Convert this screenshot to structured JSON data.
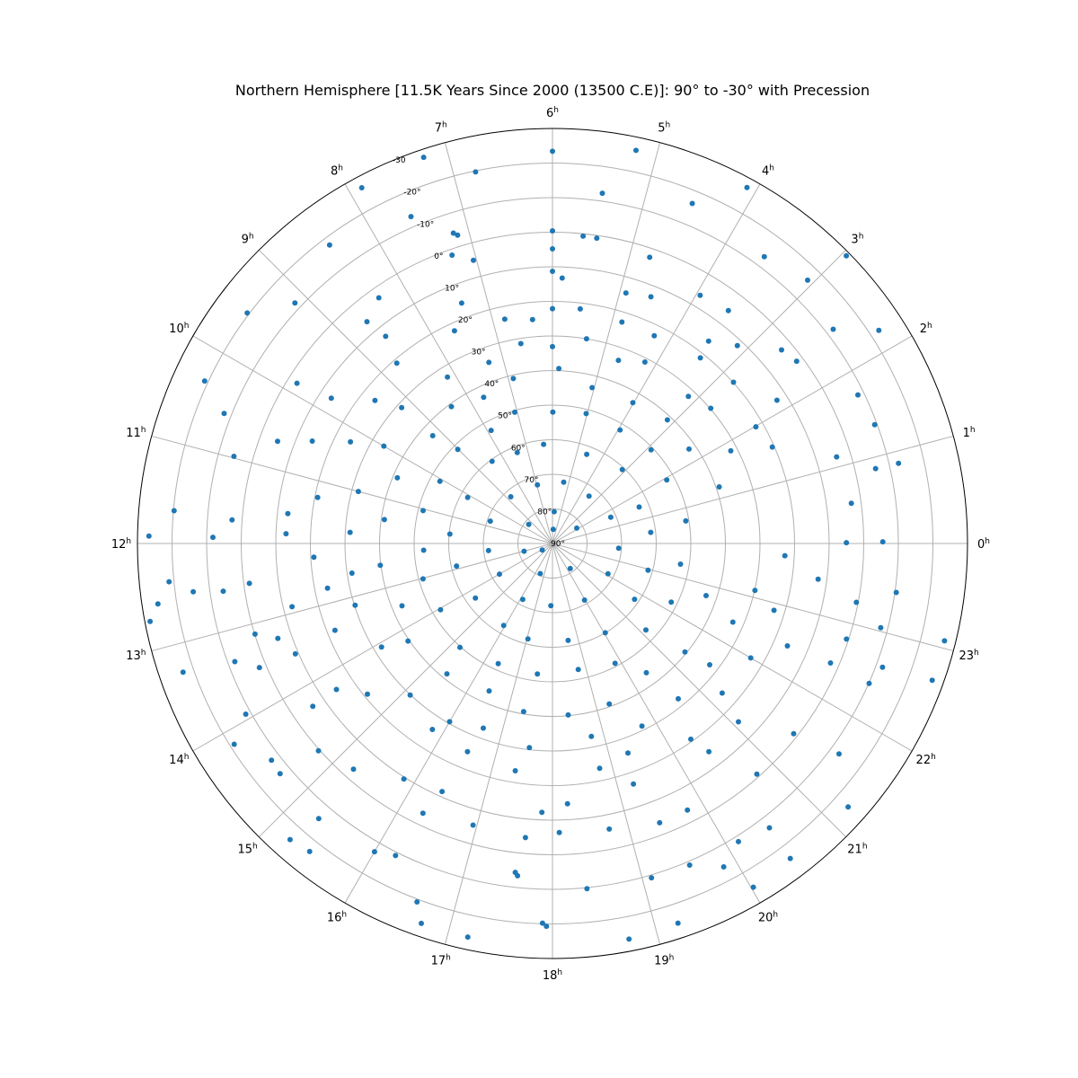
{
  "chart_data": {
    "type": "scatter",
    "projection": "polar",
    "title": "Northern Hemisphere [11.5K Years Since 2000 (13500 C.E)]: 90° to -30° with Precession",
    "radial_axis": {
      "quantity": "declination",
      "unit": "deg",
      "range": [
        90,
        -30
      ],
      "ticks": [
        90,
        80,
        70,
        60,
        50,
        40,
        30,
        20,
        10,
        0,
        -10,
        -20,
        -30
      ],
      "tick_labels": [
        "90°",
        "80°",
        "70°",
        "60°",
        "50°",
        "40°",
        "30°",
        "20°",
        "10°",
        "0°",
        "-10°",
        "-20°",
        "-30"
      ]
    },
    "angular_axis": {
      "quantity": "right ascension",
      "unit": "h",
      "direction": "counter-clockwise",
      "zero_position": "right",
      "ticks": [
        0,
        1,
        2,
        3,
        4,
        5,
        6,
        7,
        8,
        9,
        10,
        11,
        12,
        13,
        14,
        15,
        16,
        17,
        18,
        19,
        20,
        21,
        22,
        23
      ],
      "tick_labels": [
        "0",
        "1",
        "2",
        "3",
        "4",
        "5",
        "6",
        "7",
        "8",
        "9",
        "10",
        "11",
        "12",
        "13",
        "14",
        "15",
        "16",
        "17",
        "18",
        "19",
        "20",
        "21",
        "22",
        "23"
      ],
      "tick_suffix": "h"
    },
    "grid": true,
    "marker_color": "#1f77b4",
    "points": [
      [
        2.96,
        -28.9
      ],
      [
        0.87,
        -12.7
      ],
      [
        2.21,
        -22.7
      ],
      [
        4.09,
        -27.3
      ],
      [
        5.2,
        -26.2
      ],
      [
        6.0,
        -23.4
      ],
      [
        7.23,
        -27.7
      ],
      [
        6.78,
        -19.7
      ],
      [
        7.88,
        -26.7
      ],
      [
        9.53,
        -20.6
      ],
      [
        10.33,
        -21.0
      ],
      [
        12.73,
        -28.5
      ],
      [
        11.67,
        -19.8
      ],
      [
        11.93,
        -26.7
      ],
      [
        12.38,
        -21.4
      ],
      [
        12.58,
        -25.4
      ],
      [
        13.28,
        -23.1
      ],
      [
        14.15,
        -18.8
      ],
      [
        15.45,
        -23.4
      ],
      [
        15.23,
        -24.4
      ],
      [
        16.73,
        -26.2
      ],
      [
        17.19,
        -26.4
      ],
      [
        17.94,
        -20.7
      ],
      [
        17.9,
        -19.8
      ],
      [
        18.73,
        -26.5
      ],
      [
        19.22,
        -25.6
      ],
      [
        20.02,
        -25.1
      ],
      [
        20.47,
        -24.1
      ],
      [
        21.22,
        -24.5
      ],
      [
        22.68,
        -26.7
      ],
      [
        23.07,
        -26.8
      ],
      [
        12.51,
        -14.8
      ],
      [
        14.68,
        -13.1
      ],
      [
        15.31,
        -14.4
      ],
      [
        16.62,
        -20.8
      ],
      [
        19.86,
        -15.8
      ],
      [
        4.51,
        -16.3
      ],
      [
        7.56,
        -13.0
      ],
      [
        8.45,
        -17.7
      ],
      [
        9.13,
        -11.9
      ],
      [
        10.56,
        -12.1
      ],
      [
        1.73,
        -8.2
      ],
      [
        1.35,
        -9.3
      ],
      [
        2.49,
        -12.1
      ],
      [
        3.57,
        -13.1
      ],
      [
        3.06,
        -16.0
      ],
      [
        5.46,
        -12.3
      ],
      [
        6.0,
        -0.4
      ],
      [
        7.18,
        -4.2
      ],
      [
        7.14,
        -3.3
      ],
      [
        0.02,
        -5.5
      ],
      [
        0.87,
        -5.9
      ],
      [
        10.98,
        -5.5
      ],
      [
        11.93,
        -8.2
      ],
      [
        12.55,
        -6.2
      ],
      [
        13.36,
        -8.0
      ],
      [
        13.94,
        -11.5
      ],
      [
        14.51,
        -12.6
      ],
      [
        16.0,
        -12.9
      ],
      [
        16.22,
        -11.0
      ],
      [
        17.6,
        -6.6
      ],
      [
        17.57,
        -5.7
      ],
      [
        18.38,
        -10.3
      ],
      [
        19.1,
        -10.8
      ],
      [
        19.54,
        -11.1
      ],
      [
        20.13,
        -11.6
      ],
      [
        20.49,
        -13.4
      ],
      [
        21.58,
        -12.8
      ],
      [
        22.41,
        -10.1
      ],
      [
        22.63,
        -11.9
      ],
      [
        23.04,
        -8.0
      ],
      [
        23.46,
        -10.4
      ],
      [
        0.01,
        5.0
      ],
      [
        0.51,
        2.8
      ],
      [
        1.13,
        4.1
      ],
      [
        2.45,
        1.9
      ],
      [
        2.68,
        3.3
      ],
      [
        3.53,
        5.6
      ],
      [
        3.95,
        6.5
      ],
      [
        4.75,
        2.6
      ],
      [
        5.45,
        0.8
      ],
      [
        5.62,
        0.7
      ],
      [
        6.0,
        4.8
      ],
      [
        7.04,
        5.0
      ],
      [
        7.28,
        1.7
      ],
      [
        8.35,
        3.0
      ],
      [
        8.66,
        6.4
      ],
      [
        9.86,
        2.8
      ],
      [
        10.64,
        5.2
      ],
      [
        11.72,
        -2.9
      ],
      [
        12.5,
        1.6
      ],
      [
        13.13,
        0.1
      ],
      [
        13.53,
        -2.0
      ],
      [
        13.27,
        6.0
      ],
      [
        14.28,
        6.2
      ],
      [
        14.77,
        -0.4
      ],
      [
        15.24,
        3.0
      ],
      [
        16.29,
        3.5
      ],
      [
        16.95,
        5.4
      ],
      [
        17.65,
        4.6
      ],
      [
        18.09,
        6.4
      ],
      [
        18.75,
        5.8
      ],
      [
        19.4,
        3.5
      ],
      [
        19.79,
        3.6
      ],
      [
        20.77,
        0.9
      ],
      [
        21.45,
        1.2
      ],
      [
        22.45,
        2.5
      ],
      [
        22.8,
        0.6
      ],
      [
        23.27,
        0.5
      ],
      [
        2.17,
        13.0
      ],
      [
        3.13,
        11.7
      ],
      [
        3.49,
        16.1
      ],
      [
        4.55,
        13.2
      ],
      [
        4.91,
        14.5
      ],
      [
        5.86,
        13.2
      ],
      [
        6.0,
        11.3
      ],
      [
        7.38,
        15.7
      ],
      [
        8.59,
        13.1
      ],
      [
        9.78,
        13.5
      ],
      [
        10.46,
        14.5
      ],
      [
        11.57,
        13.0
      ],
      [
        11.86,
        12.9
      ],
      [
        12.91,
        12.5
      ],
      [
        13.55,
        9.1
      ],
      [
        14.27,
        14.6
      ],
      [
        15.85,
        9.5
      ],
      [
        16.4,
        11.5
      ],
      [
        17.85,
        12.2
      ],
      [
        18.22,
        14.6
      ],
      [
        19.24,
        16.6
      ],
      [
        20.46,
        14.7
      ],
      [
        21.08,
        15.5
      ],
      [
        22.43,
        15.9
      ],
      [
        23.49,
        12.5
      ],
      [
        1.58,
        20.6
      ],
      [
        1.99,
        22.2
      ],
      [
        2.78,
        19.9
      ],
      [
        3.43,
        21.4
      ],
      [
        4.26,
        23.1
      ],
      [
        4.84,
        22.9
      ],
      [
        5.55,
        21.7
      ],
      [
        6.0,
        22.1
      ],
      [
        6.34,
        25.0
      ],
      [
        6.8,
        23.7
      ],
      [
        7.65,
        22.3
      ],
      [
        8.72,
        21.1
      ],
      [
        9.41,
        24.1
      ],
      [
        10.22,
        24.6
      ],
      [
        11.26,
        20.8
      ],
      [
        12.22,
        20.9
      ],
      [
        12.75,
        23.7
      ],
      [
        13.45,
        22.3
      ],
      [
        14.61,
        21.0
      ],
      [
        15.81,
        26.0
      ],
      [
        16.52,
        25.0
      ],
      [
        17.38,
        23.4
      ],
      [
        18.79,
        23.6
      ],
      [
        19.32,
        25.6
      ],
      [
        20.35,
        20.7
      ],
      [
        21.24,
        24.6
      ],
      [
        22.0,
        23.8
      ],
      [
        22.88,
        23.1
      ],
      [
        23.8,
        22.7
      ],
      [
        1.83,
        31.9
      ],
      [
        2.7,
        29.8
      ],
      [
        3.15,
        32.1
      ],
      [
        4.2,
        31.1
      ],
      [
        4.68,
        33.7
      ],
      [
        5.37,
        30.0
      ],
      [
        6.0,
        33.1
      ],
      [
        6.6,
        31.5
      ],
      [
        7.29,
        34.5
      ],
      [
        8.15,
        33.1
      ],
      [
        9.2,
        31.3
      ],
      [
        10.0,
        33.7
      ],
      [
        11.0,
        31.9
      ],
      [
        11.79,
        31.4
      ],
      [
        12.56,
        31.4
      ],
      [
        13.16,
        30.2
      ],
      [
        14.08,
        32.2
      ],
      [
        15.12,
        29.9
      ],
      [
        16.0,
        30.5
      ],
      [
        16.63,
        33.0
      ],
      [
        17.57,
        30.6
      ],
      [
        18.76,
        33.1
      ],
      [
        19.74,
        31.2
      ],
      [
        20.6,
        32.2
      ],
      [
        21.49,
        32.6
      ],
      [
        22.43,
        33.1
      ],
      [
        23.13,
        29.9
      ],
      [
        1.25,
        39.1
      ],
      [
        2.31,
        42.0
      ],
      [
        3.14,
        41.2
      ],
      [
        4.02,
        43.1
      ],
      [
        5.05,
        43.5
      ],
      [
        5.86,
        39.4
      ],
      [
        6.89,
        41.0
      ],
      [
        7.68,
        43.3
      ],
      [
        8.43,
        40.8
      ],
      [
        9.2,
        43.4
      ],
      [
        10.47,
        41.3
      ],
      [
        11.46,
        40.9
      ],
      [
        12.48,
        39.8
      ],
      [
        13.5,
        42.9
      ],
      [
        14.27,
        39.6
      ],
      [
        15.4,
        41.5
      ],
      [
        16.45,
        43.6
      ],
      [
        17.35,
        40.7
      ],
      [
        18.35,
        40.2
      ],
      [
        19.3,
        40.8
      ],
      [
        20.4,
        43.8
      ],
      [
        21.38,
        40.5
      ],
      [
        22.75,
        43.1
      ],
      [
        0.64,
        50.9
      ],
      [
        1.94,
        52.2
      ],
      [
        2.9,
        50.7
      ],
      [
        3.95,
        51.8
      ],
      [
        5.03,
        51.2
      ],
      [
        5.99,
        52.0
      ],
      [
        7.07,
        50.5
      ],
      [
        7.9,
        52.8
      ],
      [
        9.01,
        51.4
      ],
      [
        10.07,
        52.8
      ],
      [
        11.05,
        51.4
      ],
      [
        12.2,
        52.7
      ],
      [
        13.02,
        51.2
      ],
      [
        14.04,
        52.4
      ],
      [
        15.22,
        49.8
      ],
      [
        16.38,
        51.9
      ],
      [
        17.56,
        52.0
      ],
      [
        18.77,
        52.8
      ],
      [
        19.84,
        50.9
      ],
      [
        21.15,
        53.2
      ],
      [
        22.25,
        51.7
      ],
      [
        23.39,
        52.5
      ],
      [
        0.43,
        61.4
      ],
      [
        1.52,
        62.8
      ],
      [
        3.11,
        60.6
      ],
      [
        4.6,
        62.4
      ],
      [
        6.34,
        61.2
      ],
      [
        7.41,
        61.8
      ],
      [
        8.42,
        60.5
      ],
      [
        10.1,
        62.1
      ],
      [
        11.65,
        60.2
      ],
      [
        12.88,
        61.5
      ],
      [
        14.35,
        62.7
      ],
      [
        15.95,
        62.4
      ],
      [
        17.04,
        61.5
      ],
      [
        18.61,
        61.6
      ],
      [
        20.04,
        60.0
      ],
      [
        21.72,
        61.3
      ],
      [
        22.96,
        61.3
      ],
      [
        1.62,
        71.5
      ],
      [
        3.49,
        72.7
      ],
      [
        5.31,
        72.0
      ],
      [
        6.96,
        72.5
      ],
      [
        8.78,
        71.9
      ],
      [
        10.68,
        70.9
      ],
      [
        12.42,
        71.4
      ],
      [
        14.0,
        72.3
      ],
      [
        16.13,
        71.7
      ],
      [
        17.9,
        72.0
      ],
      [
        19.97,
        71.2
      ],
      [
        22.09,
        71.7
      ],
      [
        23.73,
        70.8
      ],
      [
        2.16,
        81.7
      ],
      [
        5.8,
        80.8
      ],
      [
        9.42,
        81.2
      ],
      [
        13.01,
        81.5
      ],
      [
        16.53,
        80.6
      ],
      [
        20.36,
        81.1
      ],
      [
        5.8,
        85.9
      ],
      [
        14.17,
        86.5
      ]
    ]
  }
}
